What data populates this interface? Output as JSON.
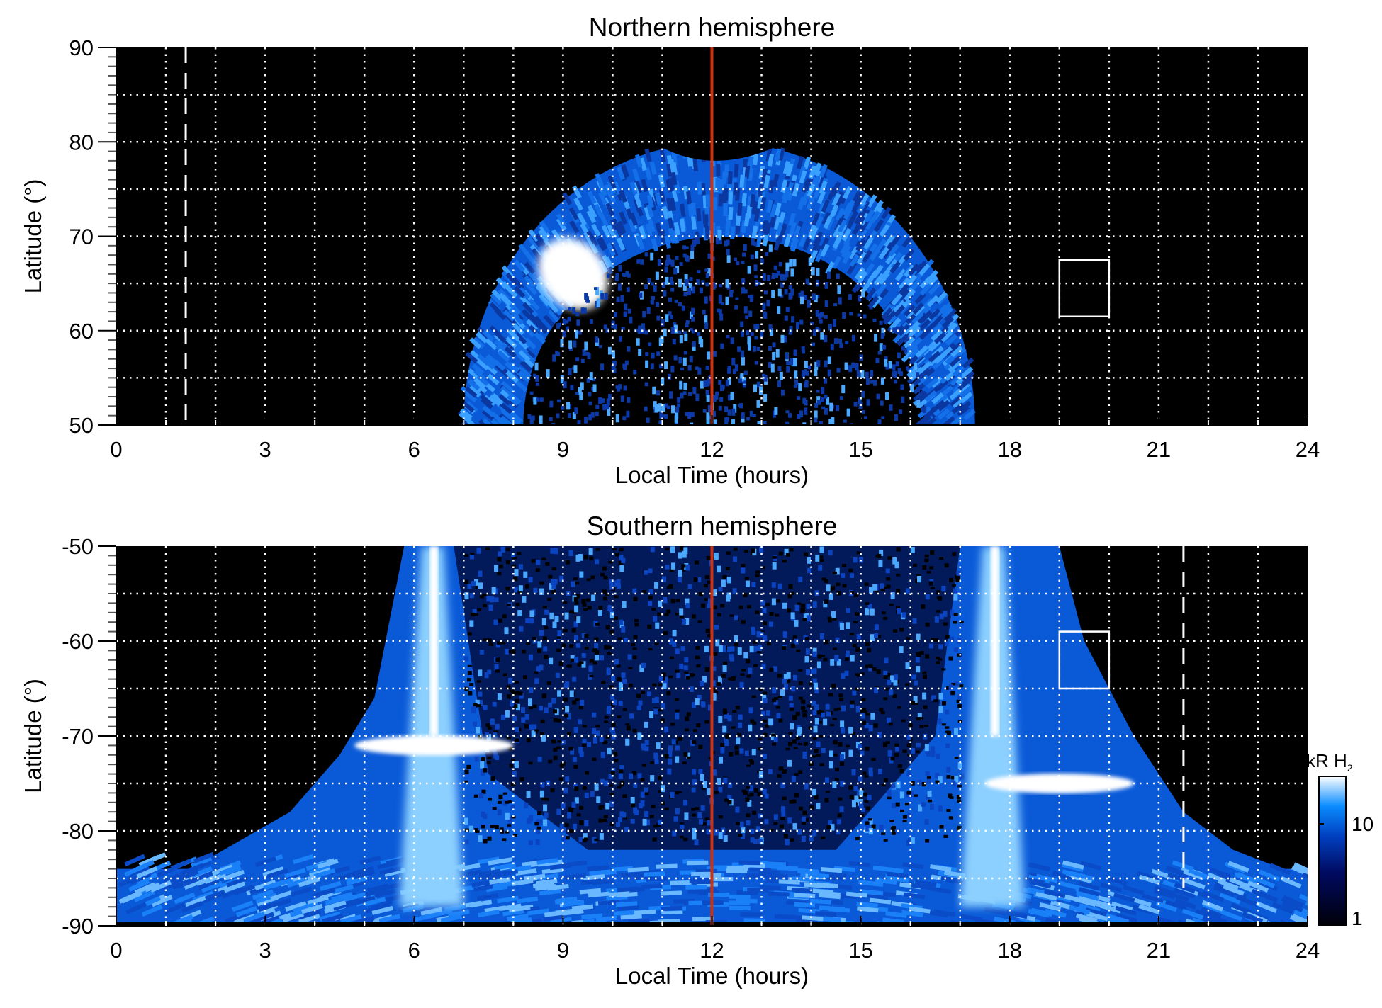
{
  "chart_data": [
    {
      "type": "heatmap",
      "title": "Northern hemisphere",
      "xlabel": "Local Time (hours)",
      "ylabel": "Latitude (°)",
      "xlim": [
        0,
        24
      ],
      "ylim": [
        50,
        90
      ],
      "xticks": [
        "0",
        "3",
        "6",
        "9",
        "12",
        "15",
        "18",
        "21",
        "24"
      ],
      "yticks": [
        "50",
        "60",
        "70",
        "80",
        "90"
      ],
      "grid": true,
      "noon_line_lt": 12,
      "dashed_line_lt": 1.4,
      "box": {
        "lt": [
          19,
          20
        ],
        "lat": [
          61.5,
          67.5
        ]
      },
      "oval": {
        "outer_lt": [
          7.0,
          17.3
        ],
        "outer_max_lat": 80,
        "inner_lt": [
          8.2,
          16.3
        ],
        "inner_max_lat": 70,
        "bright_spot": {
          "lt": 9.2,
          "lat": 66
        }
      }
    },
    {
      "type": "heatmap",
      "title": "Southern hemisphere",
      "xlabel": "Local Time (hours)",
      "ylabel": "Latitude (°)",
      "xlim": [
        0,
        24
      ],
      "ylim": [
        -90,
        -50
      ],
      "xticks": [
        "0",
        "3",
        "6",
        "9",
        "12",
        "15",
        "18",
        "21",
        "24"
      ],
      "yticks": [
        "-90",
        "-80",
        "-70",
        "-60",
        "-50"
      ],
      "grid": true,
      "noon_line_lt": 12,
      "dashed_line_lt": 21.5,
      "box": {
        "lt": [
          19,
          20
        ],
        "lat": [
          -65,
          -59
        ]
      },
      "oval": {
        "bright_bands_lt": [
          6.4,
          17.7
        ],
        "bright_arcs": [
          {
            "lt": [
              4.8,
              8
            ],
            "lat": -71
          },
          {
            "lt": [
              17.5,
              20.5
            ],
            "lat": -75
          }
        ]
      }
    }
  ],
  "colorbar": {
    "label": "kR H",
    "label_sub": "2",
    "scale": "log",
    "range": [
      1,
      30
    ],
    "ticks": [
      "1",
      "10"
    ],
    "colors": [
      "#000008",
      "#000a60",
      "#0040c0",
      "#0a8cff",
      "#ffffff"
    ]
  },
  "colors": {
    "noon_line": "#d0300a",
    "background": "#000000",
    "grid": "#ffffff"
  }
}
